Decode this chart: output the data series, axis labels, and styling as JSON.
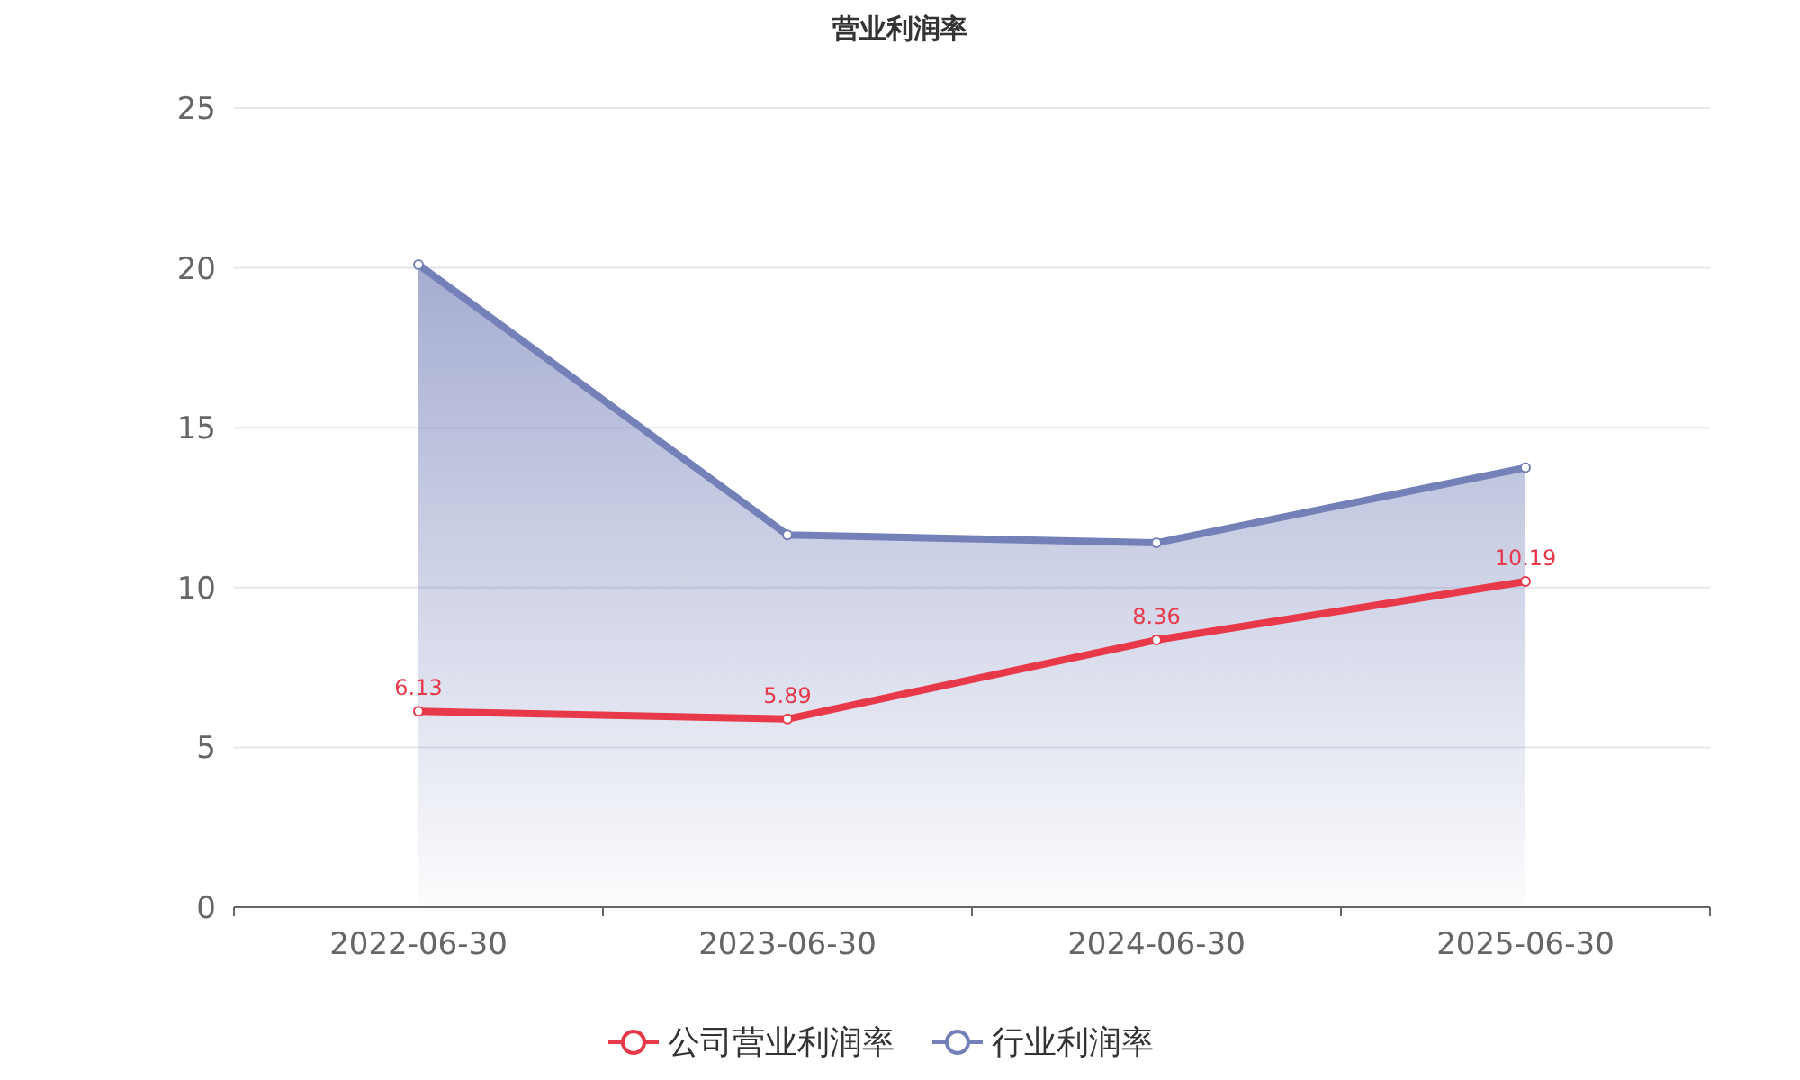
{
  "chart_data": {
    "type": "line",
    "title": "营业利润率",
    "categories": [
      "2022-06-30",
      "2023-06-30",
      "2024-06-30",
      "2025-06-30"
    ],
    "series": [
      {
        "name": "公司营业利润率",
        "color": "#e8394a",
        "values": [
          6.13,
          5.89,
          8.36,
          10.19
        ],
        "value_labels": [
          "6.13",
          "5.89",
          "8.36",
          "10.19"
        ]
      },
      {
        "name": "行业利润率",
        "type": "area",
        "color": "#7480b8",
        "values": [
          20.1,
          11.65,
          11.4,
          13.75
        ]
      }
    ],
    "ylim": [
      0,
      25
    ],
    "yticks": [
      0,
      5,
      10,
      15,
      20,
      25
    ],
    "grid": "y",
    "legend": "bottom",
    "marker": "circle"
  }
}
